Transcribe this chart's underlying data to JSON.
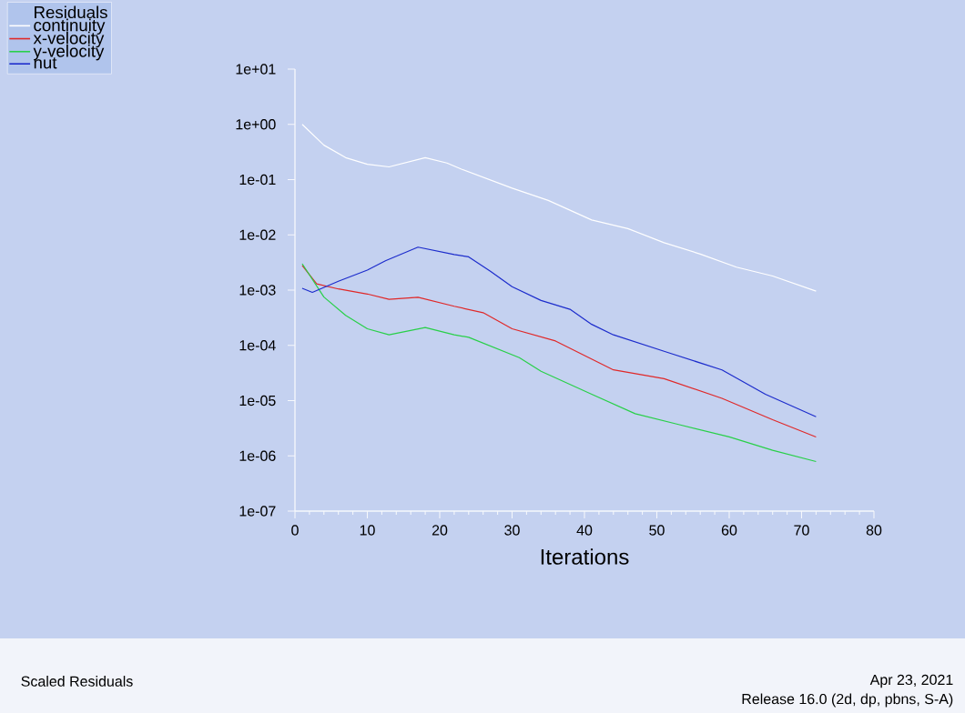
{
  "chart_data": {
    "type": "line",
    "title": "Scaled Residuals",
    "xlabel": "Iterations",
    "legend_title": "Residuals",
    "series": [
      {
        "name": "continuity",
        "color": "#ffffff",
        "x": [
          1,
          4,
          7,
          10,
          13,
          18,
          21,
          23,
          30,
          35,
          41,
          46,
          51,
          56,
          61,
          66,
          72
        ],
        "values": [
          1.0,
          0.42,
          0.25,
          0.19,
          0.17,
          0.25,
          0.2,
          0.155,
          0.07,
          0.042,
          0.0186,
          0.013,
          0.0072,
          0.0045,
          0.0026,
          0.0018,
          0.00096
        ]
      },
      {
        "name": "x-velocity",
        "color": "#e02828",
        "x": [
          1,
          3,
          6,
          10,
          13,
          17,
          22,
          26,
          30,
          36,
          44,
          51,
          59,
          66,
          72
        ],
        "values": [
          0.0028,
          0.0013,
          0.00105,
          0.00085,
          0.00068,
          0.00074,
          0.00051,
          0.00039,
          0.0002,
          0.00012,
          3.6e-05,
          2.5e-05,
          1.1e-05,
          4.5e-06,
          2.2e-06
        ]
      },
      {
        "name": "y-velocity",
        "color": "#28d048",
        "x": [
          1,
          4,
          7,
          10,
          13,
          18,
          22,
          24,
          31,
          34,
          41,
          47,
          53,
          60,
          66,
          72
        ],
        "values": [
          0.003,
          0.00075,
          0.00035,
          0.0002,
          0.000155,
          0.00021,
          0.000155,
          0.00014,
          6e-05,
          3.4e-05,
          1.3e-05,
          5.8e-06,
          3.7e-06,
          2.2e-06,
          1.26e-06,
          7.9e-07
        ]
      },
      {
        "name": "nut",
        "color": "#1c2ccc",
        "x": [
          1,
          2.4,
          6,
          10,
          12.5,
          17,
          22,
          24,
          27,
          30,
          34,
          38,
          41,
          44,
          51,
          59,
          65,
          72
        ],
        "values": [
          0.00108,
          0.00091,
          0.00145,
          0.0023,
          0.0034,
          0.006,
          0.0044,
          0.004,
          0.0022,
          0.00115,
          0.00065,
          0.00045,
          0.00024,
          0.000155,
          7.8e-05,
          3.6e-05,
          1.3e-05,
          5.1e-06
        ]
      }
    ],
    "xlim": [
      0,
      80
    ],
    "xticks": [
      0,
      10,
      20,
      30,
      40,
      50,
      60,
      70,
      80
    ],
    "ylim": [
      1e-07,
      10
    ],
    "yticks": [
      {
        "value": 1e-07,
        "label": "1e-07"
      },
      {
        "value": 1e-06,
        "label": "1e-06"
      },
      {
        "value": 1e-05,
        "label": "1e-05"
      },
      {
        "value": 0.0001,
        "label": "1e-04"
      },
      {
        "value": 0.001,
        "label": "1e-03"
      },
      {
        "value": 0.01,
        "label": "1e-02"
      },
      {
        "value": 0.1,
        "label": "1e-01"
      },
      {
        "value": 1,
        "label": "1e+00"
      },
      {
        "value": 10,
        "label": "1e+01"
      }
    ],
    "log": true,
    "grid": false,
    "legend": "top left",
    "marker": "none",
    "line_style": "solid",
    "annotations": [
      "Apr 23, 2021",
      "Release 16.0 (2d, dp, pbns, S-A)"
    ]
  }
}
